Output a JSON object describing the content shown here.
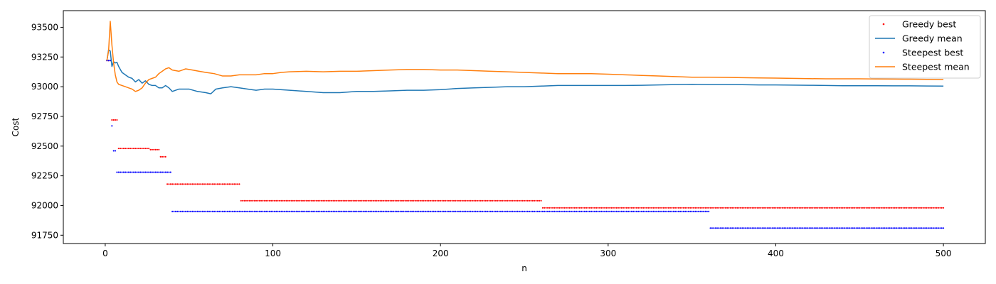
{
  "chart_data": {
    "type": "line",
    "title": "",
    "xlabel": "n",
    "ylabel": "Cost",
    "xlim": [
      -25,
      525
    ],
    "ylim": [
      91680,
      93640
    ],
    "xticks": [
      0,
      100,
      200,
      300,
      400,
      500
    ],
    "yticks": [
      91750,
      92000,
      92250,
      92500,
      92750,
      93000,
      93250,
      93500
    ],
    "legend": "top-right",
    "grid": false,
    "n_points": 500,
    "series": [
      {
        "name": "Greedy best",
        "kind": "scatter",
        "color": "#ff0000",
        "steps": [
          {
            "from": 1,
            "to": 3,
            "value": 93220
          },
          {
            "from": 4,
            "to": 7,
            "value": 92720
          },
          {
            "from": 8,
            "to": 26,
            "value": 92480
          },
          {
            "from": 27,
            "to": 32,
            "value": 92470
          },
          {
            "from": 33,
            "to": 36,
            "value": 92410
          },
          {
            "from": 37,
            "to": 80,
            "value": 92180
          },
          {
            "from": 81,
            "to": 260,
            "value": 92040
          },
          {
            "from": 261,
            "to": 500,
            "value": 91980
          }
        ]
      },
      {
        "name": "Greedy mean",
        "kind": "line",
        "color": "#1f77b4",
        "points": [
          [
            1,
            93220
          ],
          [
            2,
            93310
          ],
          [
            3,
            93300
          ],
          [
            4,
            93170
          ],
          [
            5,
            93210
          ],
          [
            6,
            93200
          ],
          [
            7,
            93205
          ],
          [
            8,
            93170
          ],
          [
            10,
            93120
          ],
          [
            12,
            93100
          ],
          [
            14,
            93080
          ],
          [
            16,
            93070
          ],
          [
            18,
            93040
          ],
          [
            20,
            93060
          ],
          [
            22,
            93030
          ],
          [
            24,
            93050
          ],
          [
            26,
            93020
          ],
          [
            28,
            93010
          ],
          [
            30,
            93010
          ],
          [
            32,
            92990
          ],
          [
            34,
            92990
          ],
          [
            36,
            93010
          ],
          [
            38,
            92990
          ],
          [
            40,
            92960
          ],
          [
            44,
            92980
          ],
          [
            50,
            92980
          ],
          [
            55,
            92960
          ],
          [
            60,
            92950
          ],
          [
            63,
            92940
          ],
          [
            66,
            92980
          ],
          [
            70,
            92990
          ],
          [
            75,
            93000
          ],
          [
            80,
            92990
          ],
          [
            85,
            92980
          ],
          [
            90,
            92970
          ],
          [
            95,
            92980
          ],
          [
            100,
            92980
          ],
          [
            110,
            92970
          ],
          [
            120,
            92960
          ],
          [
            130,
            92950
          ],
          [
            140,
            92950
          ],
          [
            150,
            92960
          ],
          [
            160,
            92960
          ],
          [
            170,
            92965
          ],
          [
            180,
            92970
          ],
          [
            190,
            92970
          ],
          [
            200,
            92975
          ],
          [
            210,
            92985
          ],
          [
            220,
            92990
          ],
          [
            230,
            92995
          ],
          [
            240,
            93000
          ],
          [
            250,
            93000
          ],
          [
            260,
            93005
          ],
          [
            270,
            93010
          ],
          [
            280,
            93010
          ],
          [
            290,
            93010
          ],
          [
            300,
            93010
          ],
          [
            310,
            93010
          ],
          [
            320,
            93012
          ],
          [
            330,
            93015
          ],
          [
            340,
            93018
          ],
          [
            350,
            93020
          ],
          [
            360,
            93018
          ],
          [
            370,
            93018
          ],
          [
            380,
            93017
          ],
          [
            390,
            93015
          ],
          [
            400,
            93015
          ],
          [
            410,
            93013
          ],
          [
            420,
            93012
          ],
          [
            430,
            93010
          ],
          [
            440,
            93008
          ],
          [
            450,
            93008
          ],
          [
            460,
            93008
          ],
          [
            470,
            93007
          ],
          [
            480,
            93007
          ],
          [
            490,
            93006
          ],
          [
            500,
            93005
          ]
        ]
      },
      {
        "name": "Steepest best",
        "kind": "scatter",
        "color": "#0000ff",
        "steps": [
          {
            "from": 1,
            "to": 3,
            "value": 93220
          },
          {
            "from": 4,
            "to": 4,
            "value": 92670
          },
          {
            "from": 5,
            "to": 6,
            "value": 92460
          },
          {
            "from": 7,
            "to": 39,
            "value": 92280
          },
          {
            "from": 40,
            "to": 360,
            "value": 91950
          },
          {
            "from": 361,
            "to": 500,
            "value": 91810
          }
        ]
      },
      {
        "name": "Steepest mean",
        "kind": "line",
        "color": "#ff7f0e",
        "points": [
          [
            1,
            93220
          ],
          [
            2,
            93300
          ],
          [
            3,
            93550
          ],
          [
            4,
            93350
          ],
          [
            5,
            93200
          ],
          [
            6,
            93100
          ],
          [
            7,
            93040
          ],
          [
            8,
            93020
          ],
          [
            10,
            93010
          ],
          [
            12,
            93000
          ],
          [
            14,
            92990
          ],
          [
            16,
            92980
          ],
          [
            18,
            92960
          ],
          [
            20,
            92970
          ],
          [
            22,
            92990
          ],
          [
            24,
            93030
          ],
          [
            26,
            93060
          ],
          [
            28,
            93070
          ],
          [
            30,
            93080
          ],
          [
            32,
            93110
          ],
          [
            34,
            93130
          ],
          [
            36,
            93150
          ],
          [
            38,
            93160
          ],
          [
            40,
            93140
          ],
          [
            44,
            93130
          ],
          [
            48,
            93150
          ],
          [
            52,
            93140
          ],
          [
            56,
            93130
          ],
          [
            60,
            93120
          ],
          [
            65,
            93110
          ],
          [
            70,
            93090
          ],
          [
            75,
            93090
          ],
          [
            80,
            93100
          ],
          [
            85,
            93100
          ],
          [
            90,
            93100
          ],
          [
            95,
            93110
          ],
          [
            100,
            93110
          ],
          [
            105,
            93120
          ],
          [
            110,
            93125
          ],
          [
            120,
            93130
          ],
          [
            130,
            93125
          ],
          [
            140,
            93130
          ],
          [
            150,
            93130
          ],
          [
            160,
            93135
          ],
          [
            170,
            93140
          ],
          [
            180,
            93145
          ],
          [
            190,
            93145
          ],
          [
            200,
            93140
          ],
          [
            210,
            93140
          ],
          [
            220,
            93135
          ],
          [
            230,
            93130
          ],
          [
            240,
            93125
          ],
          [
            250,
            93120
          ],
          [
            260,
            93115
          ],
          [
            270,
            93110
          ],
          [
            280,
            93110
          ],
          [
            290,
            93110
          ],
          [
            300,
            93105
          ],
          [
            310,
            93100
          ],
          [
            320,
            93095
          ],
          [
            330,
            93090
          ],
          [
            340,
            93085
          ],
          [
            350,
            93080
          ],
          [
            360,
            93080
          ],
          [
            370,
            93078
          ],
          [
            380,
            93076
          ],
          [
            390,
            93074
          ],
          [
            400,
            93072
          ],
          [
            410,
            93070
          ],
          [
            420,
            93068
          ],
          [
            430,
            93066
          ],
          [
            440,
            93066
          ],
          [
            450,
            93066
          ],
          [
            460,
            93065
          ],
          [
            470,
            93064
          ],
          [
            480,
            93063
          ],
          [
            490,
            93062
          ],
          [
            500,
            93060
          ]
        ]
      }
    ]
  }
}
